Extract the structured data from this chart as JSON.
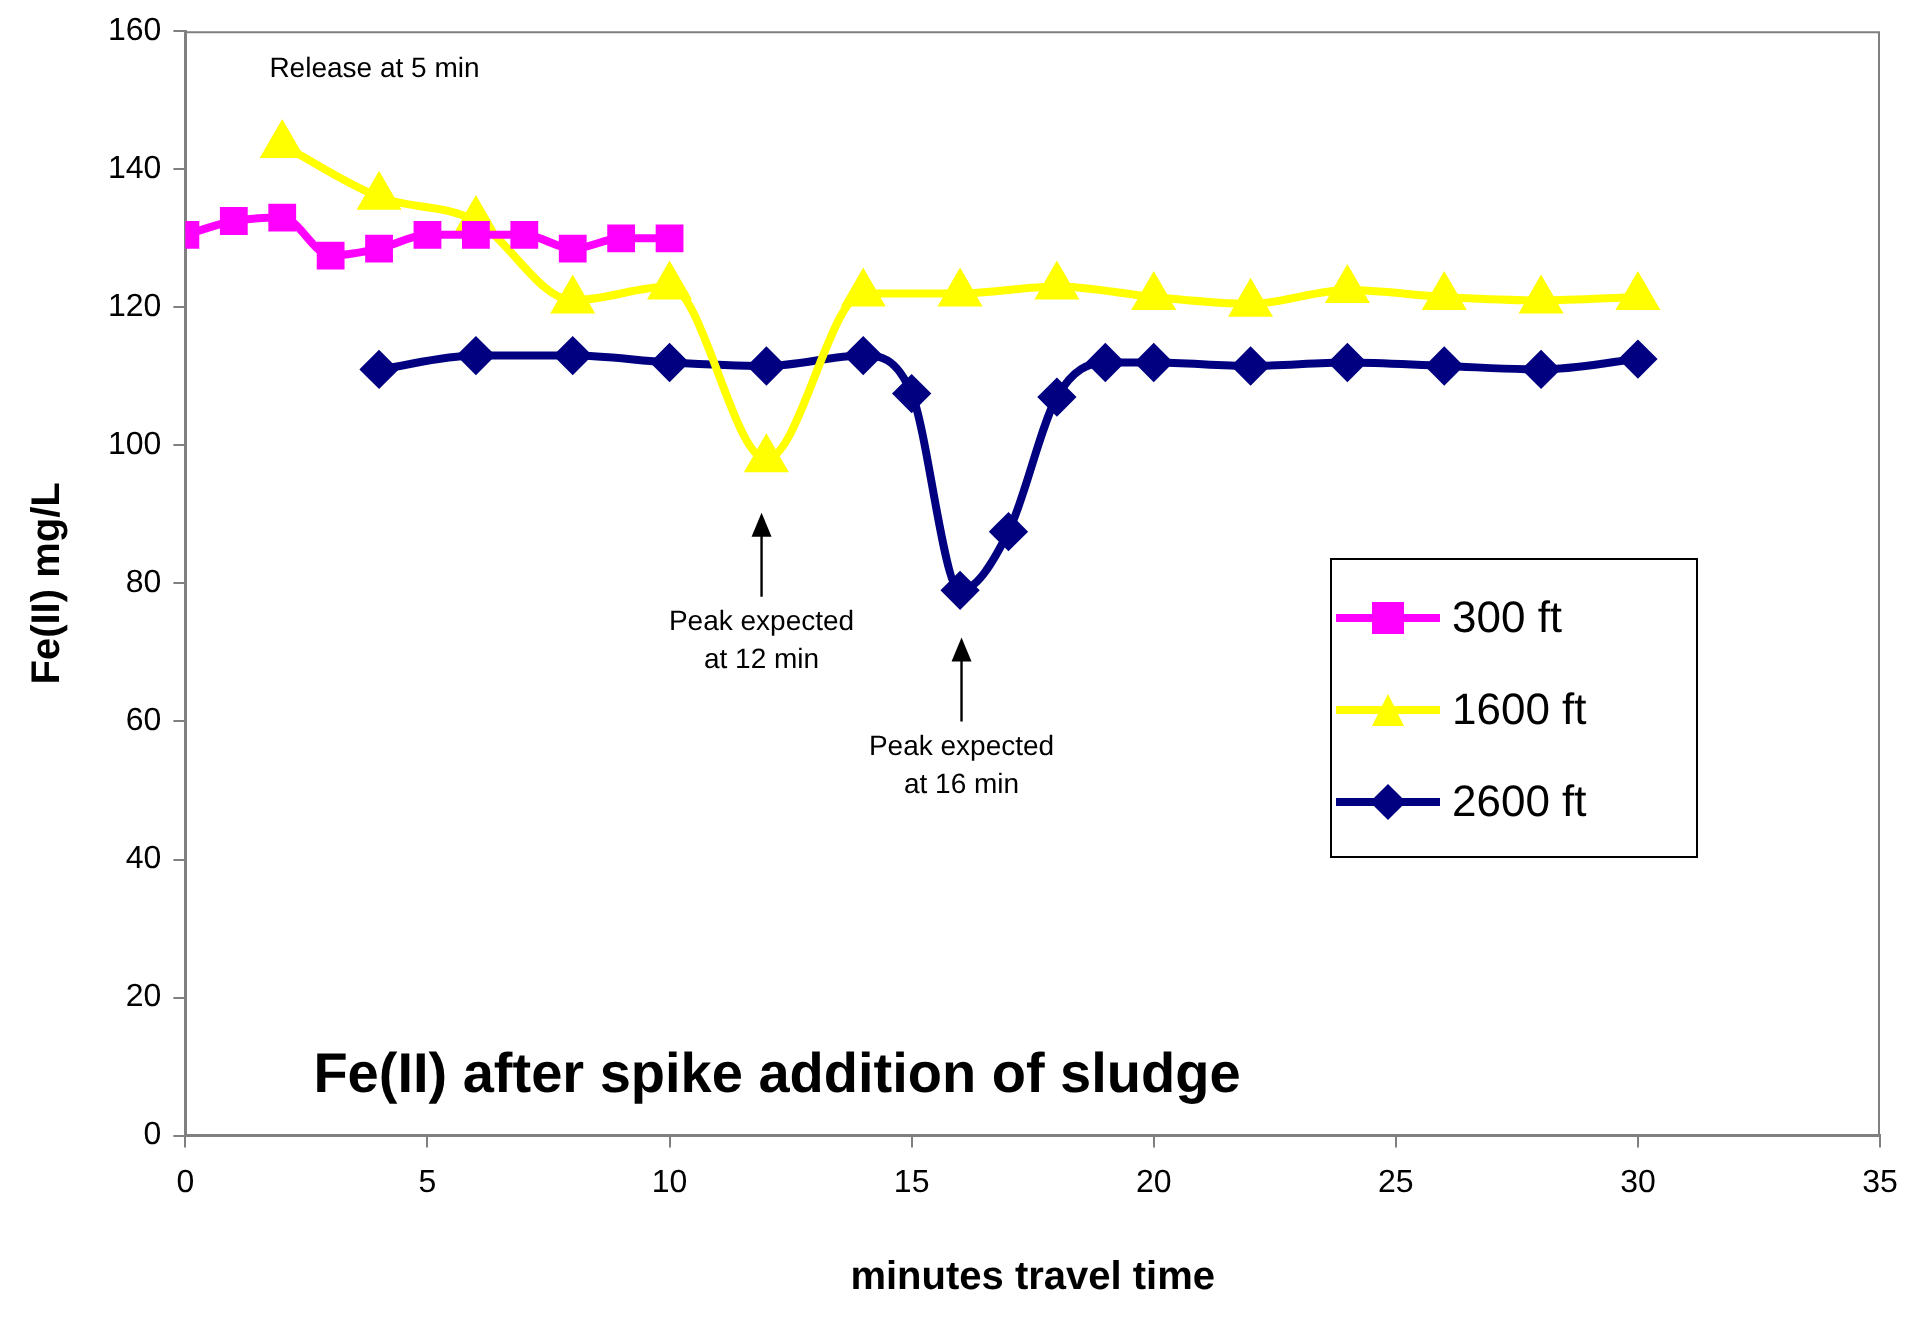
{
  "chart_data": {
    "type": "line",
    "title": "Fe(II) after spike addition of sludge",
    "xlabel": "minutes travel time",
    "ylabel": "Fe(II) mg/L",
    "xlim": [
      0,
      35
    ],
    "xticks": [
      0,
      5,
      10,
      15,
      20,
      25,
      30,
      35
    ],
    "ylim": [
      0,
      160
    ],
    "yticks": [
      0,
      20,
      40,
      60,
      80,
      100,
      120,
      140,
      160
    ],
    "grid": false,
    "legend": "right",
    "series": [
      {
        "name": "300 ft",
        "color": "#ff00ff",
        "marker": "square",
        "x": [
          0,
          1,
          2,
          3,
          4,
          5,
          6,
          7,
          8,
          9,
          10
        ],
        "values": [
          130.5,
          132.5,
          133,
          127.5,
          128.5,
          130.5,
          130.5,
          130.5,
          128.5,
          130,
          130
        ]
      },
      {
        "name": "1600 ft",
        "color": "#ffff00",
        "marker": "triangle",
        "x": [
          2,
          4,
          6,
          8,
          10,
          12,
          14,
          16,
          18,
          20,
          22,
          24,
          26,
          28,
          30
        ],
        "values": [
          143.5,
          136,
          132.5,
          121,
          123,
          98,
          122,
          122,
          123,
          121.5,
          120.5,
          122.5,
          121.5,
          121,
          121.5
        ]
      },
      {
        "name": "2600 ft",
        "color": "#000080",
        "marker": "diamond",
        "x": [
          4,
          6,
          8,
          10,
          12,
          14,
          15,
          16,
          17,
          18,
          19,
          20,
          22,
          24,
          26,
          28,
          30
        ],
        "values": [
          111,
          113,
          113,
          112,
          111.5,
          113,
          107.5,
          79,
          87.5,
          107,
          112,
          112,
          111.5,
          112,
          111.5,
          111,
          112.5
        ]
      }
    ],
    "annotations": [
      "Release at 5 min",
      "Peak expected\nat 12 min",
      "Peak expected\nat 16 min"
    ]
  }
}
